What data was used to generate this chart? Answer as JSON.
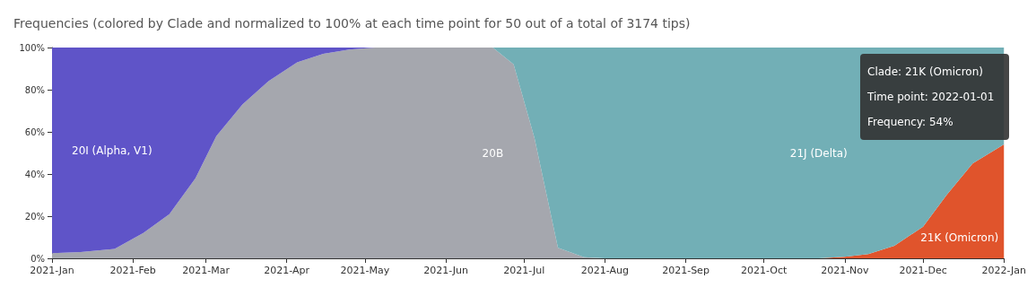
{
  "chart_data": {
    "type": "area",
    "stacked": true,
    "title": "Frequencies (colored by Clade and normalized to 100% at each time point for 50 out of a total of 3174 tips)",
    "x": [
      "2021-01-01",
      "2021-01-12",
      "2021-01-25",
      "2021-02-05",
      "2021-02-15",
      "2021-02-25",
      "2021-03-05",
      "2021-03-15",
      "2021-03-25",
      "2021-04-05",
      "2021-04-15",
      "2021-04-25",
      "2021-05-05",
      "2021-06-19",
      "2021-06-27",
      "2021-07-05",
      "2021-07-14",
      "2021-07-24",
      "2021-08-01",
      "2021-10-22",
      "2021-11-01",
      "2021-11-10",
      "2021-11-20",
      "2021-12-01",
      "2021-12-10",
      "2021-12-20",
      "2022-01-01"
    ],
    "series": [
      {
        "name": "21K (Omicron)",
        "color": "#e0542c",
        "values": [
          null,
          null,
          null,
          null,
          null,
          null,
          null,
          null,
          null,
          null,
          null,
          null,
          null,
          null,
          null,
          null,
          null,
          null,
          null,
          0,
          0.7,
          2,
          6,
          15,
          30,
          45,
          54
        ]
      },
      {
        "name": "20B",
        "color": "#a5a7ae",
        "values": [
          2.5,
          3,
          4.5,
          12,
          21,
          38,
          58,
          73,
          84,
          93,
          97,
          99,
          100,
          100,
          92,
          57,
          5,
          0.5,
          0,
          null,
          null,
          null,
          null,
          null,
          null,
          null,
          null
        ]
      },
      {
        "name": "21J (Delta)",
        "color": "#72afb6",
        "values": [
          null,
          null,
          null,
          null,
          null,
          null,
          null,
          null,
          null,
          null,
          null,
          null,
          null,
          0,
          8,
          43,
          95,
          99.5,
          100,
          100,
          99.3,
          98,
          94,
          85,
          70,
          55,
          46
        ]
      },
      {
        "name": "20I (Alpha, V1)",
        "color": "#5f54c8",
        "values": [
          97.5,
          97,
          95.5,
          88,
          79,
          62,
          42,
          27,
          16,
          7,
          3,
          1,
          0,
          null,
          null,
          null,
          null,
          null,
          null,
          null,
          null,
          null,
          null,
          null,
          null,
          null,
          null
        ]
      }
    ],
    "xlim": [
      "2021-01-01",
      "2022-01-01"
    ],
    "xticks": [
      {
        "value": "2021-01-01",
        "label": "2021-Jan"
      },
      {
        "value": "2021-02-01",
        "label": "2021-Feb"
      },
      {
        "value": "2021-03-01",
        "label": "2021-Mar"
      },
      {
        "value": "2021-04-01",
        "label": "2021-Apr"
      },
      {
        "value": "2021-05-01",
        "label": "2021-May"
      },
      {
        "value": "2021-06-01",
        "label": "2021-Jun"
      },
      {
        "value": "2021-07-01",
        "label": "2021-Jul"
      },
      {
        "value": "2021-08-01",
        "label": "2021-Aug"
      },
      {
        "value": "2021-09-01",
        "label": "2021-Sep"
      },
      {
        "value": "2021-10-01",
        "label": "2021-Oct"
      },
      {
        "value": "2021-11-01",
        "label": "2021-Nov"
      },
      {
        "value": "2021-12-01",
        "label": "2021-Dec"
      },
      {
        "value": "2022-01-01",
        "label": "2022-Jan"
      }
    ],
    "ylim": [
      0,
      100
    ],
    "yticks": [
      {
        "value": 0,
        "label": "0%"
      },
      {
        "value": 20,
        "label": "20%"
      },
      {
        "value": 40,
        "label": "40%"
      },
      {
        "value": 60,
        "label": "60%"
      },
      {
        "value": 80,
        "label": "80%"
      },
      {
        "value": 100,
        "label": "100%"
      }
    ],
    "annotations": [
      "Clade: 21K (Omicron)",
      "Time point: 2022-01-01",
      "Frequency: 54%"
    ]
  }
}
